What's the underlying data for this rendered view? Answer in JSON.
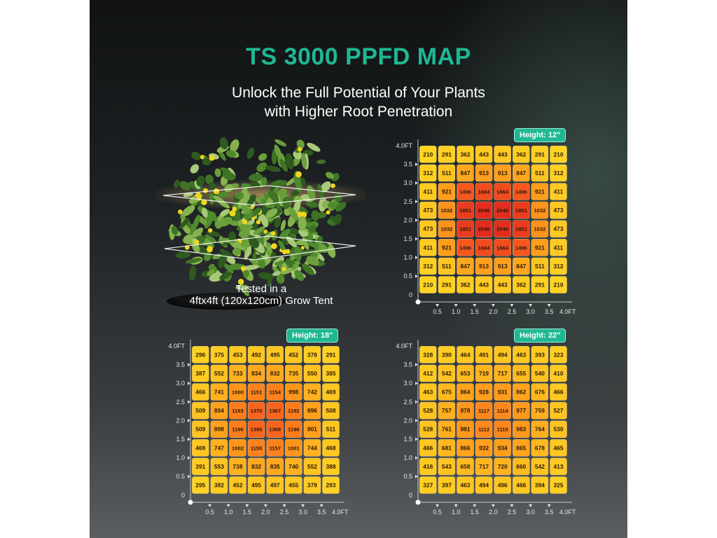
{
  "title": "TS 3000 PPFD MAP",
  "subtitle_line1": "Unlock the Full Potential of Your Plants",
  "subtitle_line2": "with Higher Root Penetration",
  "caption_line1": "Tested in a",
  "caption_line2": "4ftx4ft (120x120cm) Grow Tent",
  "chart_data": [
    {
      "type": "heatmap",
      "label": "Height: 12\"",
      "y_ticks": [
        "4.0FT",
        "3.5",
        "3.0",
        "2.5",
        "2.0",
        "1.5",
        "1.0",
        "0.5",
        "0"
      ],
      "x_ticks": [
        "0.5",
        "1.0",
        "1.5",
        "2.0",
        "2.5",
        "3.0",
        "3.5",
        "4.0FT"
      ],
      "values": [
        [
          210,
          291,
          362,
          443,
          443,
          362,
          291,
          210
        ],
        [
          312,
          511,
          847,
          913,
          913,
          847,
          511,
          312
        ],
        [
          411,
          921,
          1496,
          1664,
          1664,
          1496,
          921,
          411
        ],
        [
          473,
          1032,
          1851,
          2046,
          2046,
          1851,
          1032,
          473
        ],
        [
          473,
          1032,
          1851,
          2046,
          2046,
          1851,
          1032,
          473
        ],
        [
          411,
          921,
          1496,
          1664,
          1664,
          1496,
          921,
          411
        ],
        [
          312,
          511,
          847,
          913,
          913,
          847,
          511,
          312
        ],
        [
          210,
          291,
          362,
          443,
          443,
          362,
          291,
          210
        ]
      ]
    },
    {
      "type": "heatmap",
      "label": "Height: 18\"",
      "y_ticks": [
        "4.0FT",
        "3.5",
        "3.0",
        "2.5",
        "2.0",
        "1.5",
        "1.0",
        "0.5",
        "0"
      ],
      "x_ticks": [
        "0.5",
        "1.0",
        "1.5",
        "2.0",
        "2.5",
        "3.0",
        "3.5",
        "4.0FT"
      ],
      "values": [
        [
          296,
          375,
          453,
          492,
          495,
          452,
          378,
          291
        ],
        [
          387,
          552,
          733,
          834,
          832,
          735,
          550,
          385
        ],
        [
          466,
          741,
          1000,
          1151,
          1154,
          998,
          742,
          469
        ],
        [
          509,
          894,
          1193,
          1370,
          1367,
          1192,
          896,
          508
        ],
        [
          509,
          898,
          1196,
          1365,
          1368,
          1198,
          901,
          511
        ],
        [
          469,
          747,
          1002,
          1155,
          1157,
          1001,
          744,
          468
        ],
        [
          391,
          553,
          738,
          832,
          835,
          740,
          552,
          388
        ],
        [
          295,
          382,
          452,
          495,
          497,
          455,
          379,
          293
        ]
      ]
    },
    {
      "type": "heatmap",
      "label": "Height: 22\"",
      "y_ticks": [
        "4.0FT",
        "3.5",
        "3.0",
        "2.5",
        "2.0",
        "1.5",
        "1.0",
        "0.5",
        "0"
      ],
      "x_ticks": [
        "0.5",
        "1.0",
        "1.5",
        "2.0",
        "2.5",
        "3.0",
        "3.5",
        "4.0FT"
      ],
      "values": [
        [
          328,
          390,
          464,
          491,
          494,
          463,
          393,
          323
        ],
        [
          412,
          542,
          653,
          719,
          717,
          655,
          540,
          410
        ],
        [
          463,
          675,
          864,
          928,
          931,
          862,
          676,
          466
        ],
        [
          528,
          757,
          978,
          1117,
          1114,
          977,
          759,
          527
        ],
        [
          528,
          761,
          981,
          1112,
          1115,
          983,
          764,
          530
        ],
        [
          466,
          681,
          866,
          932,
          934,
          865,
          678,
          465
        ],
        [
          416,
          543,
          658,
          717,
          720,
          660,
          542,
          413
        ],
        [
          327,
          397,
          463,
          494,
          496,
          466,
          394,
          325
        ]
      ]
    }
  ]
}
